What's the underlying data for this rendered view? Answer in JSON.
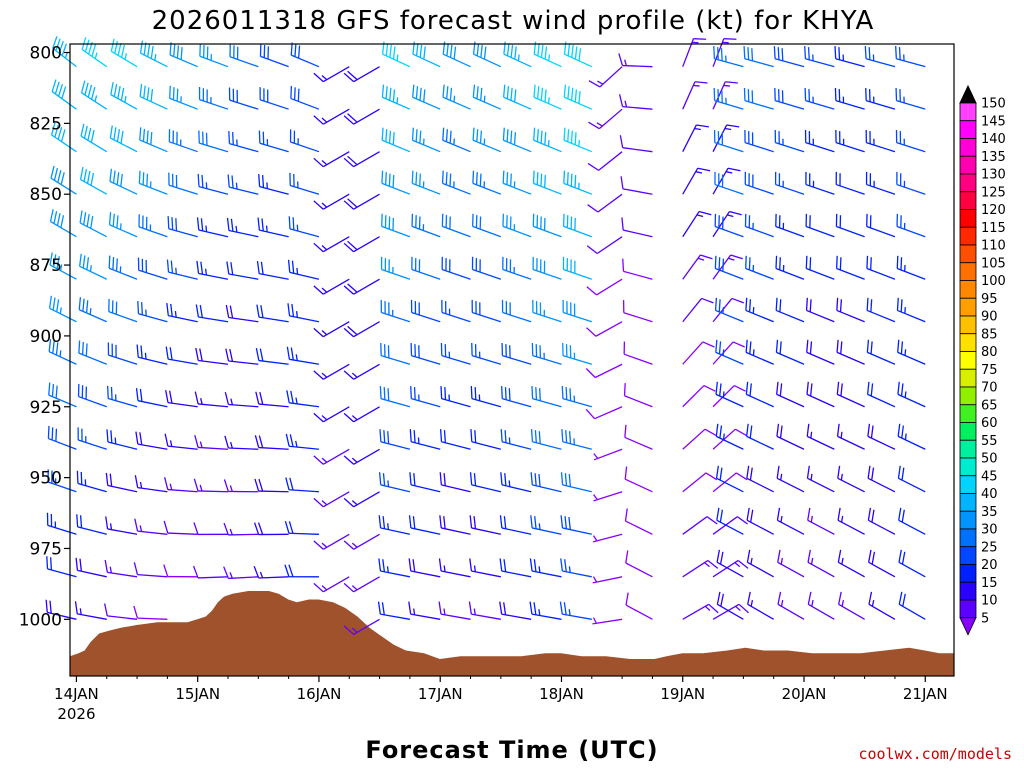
{
  "chart_data": {
    "type": "wind-barb-profile",
    "title": "2026011318 GFS forecast wind profile (kt) for KHYA",
    "xlabel": "Forecast Time (UTC)",
    "x_ticks": [
      {
        "label": "14JAN",
        "sub": "2026",
        "day": 0.333
      },
      {
        "label": "15JAN",
        "sub": "",
        "day": 1.333
      },
      {
        "label": "16JAN",
        "sub": "",
        "day": 2.333
      },
      {
        "label": "17JAN",
        "sub": "",
        "day": 3.333
      },
      {
        "label": "18JAN",
        "sub": "",
        "day": 4.333
      },
      {
        "label": "19JAN",
        "sub": "",
        "day": 5.333
      },
      {
        "label": "20JAN",
        "sub": "",
        "day": 6.333
      },
      {
        "label": "21JAN",
        "sub": "",
        "day": 7.333
      }
    ],
    "xlim_days": [
      0.28,
      7.57
    ],
    "y_ticks": [
      800,
      825,
      850,
      875,
      900,
      925,
      950,
      975,
      1000
    ],
    "ylim_hpa": [
      797,
      1020
    ],
    "levels_hpa": [
      805,
      820,
      835,
      850,
      865,
      880,
      895,
      910,
      925,
      940,
      955,
      970,
      985,
      1000,
      1015
    ],
    "colorbar": {
      "labels": [
        5,
        10,
        15,
        20,
        25,
        30,
        35,
        40,
        45,
        50,
        55,
        60,
        65,
        70,
        75,
        80,
        85,
        90,
        95,
        100,
        105,
        110,
        115,
        120,
        125,
        130,
        135,
        140,
        145,
        150
      ],
      "colors": [
        "#8a00ff",
        "#5c00ff",
        "#2a00ff",
        "#0020ff",
        "#0048ff",
        "#0070ff",
        "#0094ff",
        "#00b4ff",
        "#00d4ff",
        "#00ecd0",
        "#00f0a0",
        "#00f060",
        "#40f020",
        "#90f000",
        "#d8f000",
        "#ffff00",
        "#ffe000",
        "#ffc000",
        "#ffa000",
        "#ff8800",
        "#ff7000",
        "#ff5000",
        "#ff2800",
        "#ff0000",
        "#ff0040",
        "#ff0080",
        "#ff00b0",
        "#ff00d8",
        "#ff00ff",
        "#ff40ff"
      ]
    },
    "terrain_color": "#a0522d",
    "surface_pressure_hpa": [
      [
        0.28,
        1013
      ],
      [
        0.35,
        1012
      ],
      [
        0.4,
        1011
      ],
      [
        0.45,
        1008
      ],
      [
        0.52,
        1005
      ],
      [
        0.6,
        1004
      ],
      [
        0.7,
        1003
      ],
      [
        0.83,
        1002
      ],
      [
        1.0,
        1001
      ],
      [
        1.25,
        1001
      ],
      [
        1.33,
        1000
      ],
      [
        1.4,
        999
      ],
      [
        1.45,
        997
      ],
      [
        1.5,
        994
      ],
      [
        1.55,
        992
      ],
      [
        1.62,
        991
      ],
      [
        1.75,
        990
      ],
      [
        1.92,
        990
      ],
      [
        2.0,
        991
      ],
      [
        2.08,
        993
      ],
      [
        2.15,
        994
      ],
      [
        2.25,
        993
      ],
      [
        2.33,
        993
      ],
      [
        2.45,
        994
      ],
      [
        2.55,
        996
      ],
      [
        2.65,
        999
      ],
      [
        2.75,
        1003
      ],
      [
        2.85,
        1006
      ],
      [
        2.95,
        1009
      ],
      [
        3.05,
        1011
      ],
      [
        3.2,
        1012
      ],
      [
        3.33,
        1014
      ],
      [
        3.5,
        1013
      ],
      [
        3.8,
        1013
      ],
      [
        4.0,
        1013
      ],
      [
        4.2,
        1012
      ],
      [
        4.33,
        1012
      ],
      [
        4.5,
        1013
      ],
      [
        4.7,
        1013
      ],
      [
        4.9,
        1014
      ],
      [
        5.1,
        1014
      ],
      [
        5.2,
        1013
      ],
      [
        5.33,
        1012
      ],
      [
        5.5,
        1012
      ],
      [
        5.7,
        1011
      ],
      [
        5.85,
        1010
      ],
      [
        6.0,
        1011
      ],
      [
        6.2,
        1011
      ],
      [
        6.4,
        1012
      ],
      [
        6.6,
        1012
      ],
      [
        6.8,
        1012
      ],
      [
        7.0,
        1011
      ],
      [
        7.2,
        1010
      ],
      [
        7.33,
        1011
      ],
      [
        7.45,
        1012
      ],
      [
        7.57,
        1012
      ]
    ]
  },
  "credit": "coolwx.com/models"
}
